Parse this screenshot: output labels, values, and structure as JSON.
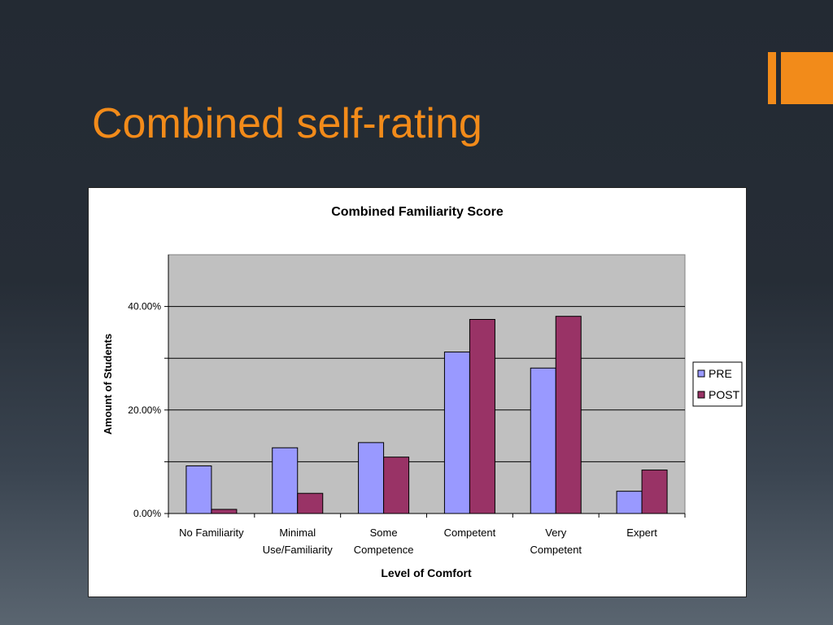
{
  "slide": {
    "title": "Combined self-rating",
    "accent_color": "#f28b1a"
  },
  "chart_data": {
    "type": "bar",
    "title": "Combined Familiarity Score",
    "xlabel": "Level of Comfort",
    "ylabel": "Amount of Students",
    "categories": [
      [
        "No Familiarity"
      ],
      [
        "Minimal",
        "Use/Familiarity"
      ],
      [
        "Some",
        "Competence"
      ],
      [
        "Competent"
      ],
      [
        "Very",
        "Competent"
      ],
      [
        "Expert"
      ]
    ],
    "series": [
      {
        "name": "PRE",
        "color": "#9999ff",
        "values": [
          9.2,
          12.7,
          13.7,
          31.2,
          28.1,
          4.3
        ]
      },
      {
        "name": "POST",
        "color": "#993366",
        "values": [
          0.8,
          3.9,
          10.9,
          37.5,
          38.1,
          8.4
        ]
      }
    ],
    "ylim": [
      0,
      50
    ],
    "yticks": [
      {
        "value": 0,
        "label": "0.00%"
      },
      {
        "value": 20,
        "label": "20.00%"
      },
      {
        "value": 40,
        "label": "40.00%"
      }
    ],
    "gridlines": [
      10,
      20,
      30,
      40
    ],
    "legend_position": "right",
    "plot_background": "#c0c0c0"
  }
}
